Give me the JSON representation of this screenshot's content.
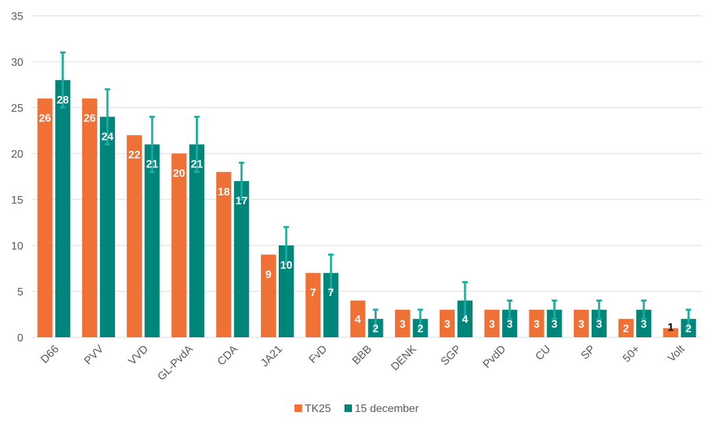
{
  "chart_data": {
    "type": "bar",
    "title": "",
    "xlabel": "",
    "ylabel": "",
    "ylim": [
      0,
      35
    ],
    "yticks": [
      0,
      5,
      10,
      15,
      20,
      25,
      30,
      35
    ],
    "grid": true,
    "legend_position": "bottom",
    "categories": [
      "D66",
      "PVV",
      "VVD",
      "GL-PvdA",
      "CDA",
      "JA21",
      "FvD",
      "BBB",
      "DENK",
      "SGP",
      "PvdD",
      "CU",
      "SP",
      "50+",
      "Volt"
    ],
    "series": [
      {
        "name": "TK25",
        "color": "#F07135",
        "values": [
          26,
          26,
          22,
          20,
          18,
          9,
          7,
          4,
          3,
          3,
          3,
          3,
          3,
          2,
          1
        ]
      },
      {
        "name": "15 december",
        "color": "#00857A",
        "error_bar_color": "#1AADA0",
        "values": [
          28,
          24,
          21,
          21,
          17,
          10,
          7,
          2,
          2,
          4,
          3,
          3,
          3,
          3,
          2
        ],
        "error_low": [
          25,
          21,
          18,
          18,
          15,
          8,
          5,
          1,
          1,
          2,
          2,
          2,
          2,
          2,
          1
        ],
        "error_high": [
          31,
          27,
          24,
          24,
          19,
          12,
          9,
          3,
          3,
          6,
          4,
          4,
          4,
          4,
          3
        ]
      }
    ],
    "label_colors": {
      "default": "#FFFFFF",
      "dark": "#000000"
    },
    "gridline_color": "#D9D9D9"
  }
}
